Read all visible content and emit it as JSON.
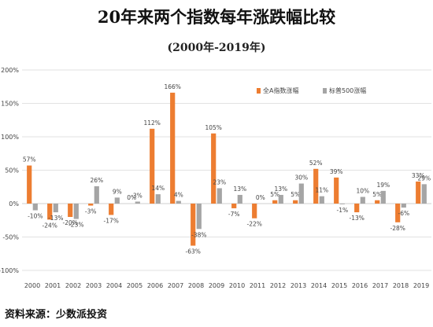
{
  "header": {
    "title": "20年来两个指数每年涨跌幅比较",
    "subtitle": "(2000年-2019年)"
  },
  "footer": {
    "source": "资料来源：少数派投资"
  },
  "colors": {
    "series_a": "#ED7D31",
    "series_b": "#A5A5A5",
    "grid": "#D9D9D9",
    "zero_line": "#BFBFBF"
  },
  "chart_data": {
    "type": "bar",
    "categories": [
      "2000",
      "2001",
      "2002",
      "2003",
      "2004",
      "2005",
      "2006",
      "2007",
      "2008",
      "2009",
      "2010",
      "2011",
      "2012",
      "2013",
      "2014",
      "2015",
      "2016",
      "2017",
      "2018",
      "2019"
    ],
    "series": [
      {
        "name": "全A指数涨幅",
        "values": [
          57,
          -24,
          -20,
          -3,
          -17,
          0,
          112,
          166,
          -63,
          105,
          -7,
          -22,
          5,
          5,
          52,
          39,
          -13,
          5,
          -28,
          33
        ],
        "labels": [
          "57%",
          "-24%",
          "-20%",
          "-3%",
          "-17%",
          "0%",
          "112%",
          "166%",
          "-63%",
          "105%",
          "-7%",
          "-22%",
          "5%",
          "5%",
          "52%",
          "39%",
          "-13%",
          "5%",
          "-28%",
          "33%"
        ]
      },
      {
        "name": "标普500涨幅",
        "values": [
          -10,
          -13,
          -23,
          26,
          9,
          3,
          14,
          4,
          -38,
          23,
          13,
          0,
          13,
          30,
          11,
          -1,
          10,
          19,
          -6,
          29
        ],
        "labels": [
          "-10%",
          "-13%",
          "-23%",
          "26%",
          "9%",
          "3%",
          "14%",
          "4%",
          "-38%",
          "23%",
          "13%",
          "0%",
          "13%",
          "30%",
          "11%",
          "-1%",
          "10%",
          "19%",
          "-6%",
          "29%"
        ]
      }
    ],
    "ylim": [
      -100,
      200
    ],
    "yticks": [
      -100,
      -50,
      0,
      50,
      100,
      150,
      200
    ],
    "ytick_labels": [
      "-100%",
      "-50%",
      "0%",
      "50%",
      "100%",
      "150%",
      "200%"
    ],
    "grid": true,
    "legend_position": "top-right"
  }
}
